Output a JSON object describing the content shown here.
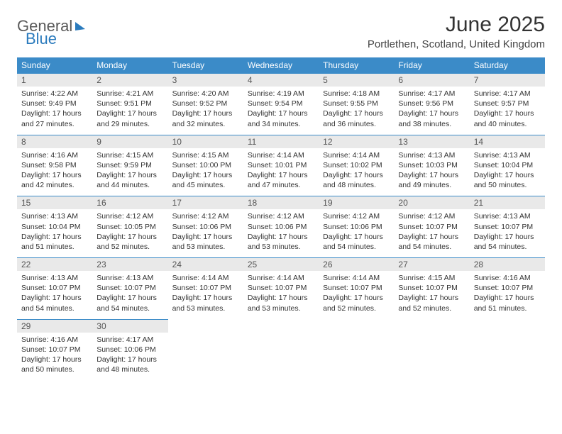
{
  "brand": {
    "part1": "General",
    "part2": "Blue"
  },
  "header": {
    "title": "June 2025",
    "location": "Portlethen, Scotland, United Kingdom"
  },
  "colors": {
    "header_bg": "#3b8bc8",
    "header_text": "#ffffff",
    "daynum_bg": "#e9e9e9",
    "border": "#3b8bc8",
    "text": "#333333"
  },
  "daysOfWeek": [
    "Sunday",
    "Monday",
    "Tuesday",
    "Wednesday",
    "Thursday",
    "Friday",
    "Saturday"
  ],
  "weeks": [
    [
      {
        "num": "1",
        "sunrise": "Sunrise: 4:22 AM",
        "sunset": "Sunset: 9:49 PM",
        "daylight": "Daylight: 17 hours and 27 minutes."
      },
      {
        "num": "2",
        "sunrise": "Sunrise: 4:21 AM",
        "sunset": "Sunset: 9:51 PM",
        "daylight": "Daylight: 17 hours and 29 minutes."
      },
      {
        "num": "3",
        "sunrise": "Sunrise: 4:20 AM",
        "sunset": "Sunset: 9:52 PM",
        "daylight": "Daylight: 17 hours and 32 minutes."
      },
      {
        "num": "4",
        "sunrise": "Sunrise: 4:19 AM",
        "sunset": "Sunset: 9:54 PM",
        "daylight": "Daylight: 17 hours and 34 minutes."
      },
      {
        "num": "5",
        "sunrise": "Sunrise: 4:18 AM",
        "sunset": "Sunset: 9:55 PM",
        "daylight": "Daylight: 17 hours and 36 minutes."
      },
      {
        "num": "6",
        "sunrise": "Sunrise: 4:17 AM",
        "sunset": "Sunset: 9:56 PM",
        "daylight": "Daylight: 17 hours and 38 minutes."
      },
      {
        "num": "7",
        "sunrise": "Sunrise: 4:17 AM",
        "sunset": "Sunset: 9:57 PM",
        "daylight": "Daylight: 17 hours and 40 minutes."
      }
    ],
    [
      {
        "num": "8",
        "sunrise": "Sunrise: 4:16 AM",
        "sunset": "Sunset: 9:58 PM",
        "daylight": "Daylight: 17 hours and 42 minutes."
      },
      {
        "num": "9",
        "sunrise": "Sunrise: 4:15 AM",
        "sunset": "Sunset: 9:59 PM",
        "daylight": "Daylight: 17 hours and 44 minutes."
      },
      {
        "num": "10",
        "sunrise": "Sunrise: 4:15 AM",
        "sunset": "Sunset: 10:00 PM",
        "daylight": "Daylight: 17 hours and 45 minutes."
      },
      {
        "num": "11",
        "sunrise": "Sunrise: 4:14 AM",
        "sunset": "Sunset: 10:01 PM",
        "daylight": "Daylight: 17 hours and 47 minutes."
      },
      {
        "num": "12",
        "sunrise": "Sunrise: 4:14 AM",
        "sunset": "Sunset: 10:02 PM",
        "daylight": "Daylight: 17 hours and 48 minutes."
      },
      {
        "num": "13",
        "sunrise": "Sunrise: 4:13 AM",
        "sunset": "Sunset: 10:03 PM",
        "daylight": "Daylight: 17 hours and 49 minutes."
      },
      {
        "num": "14",
        "sunrise": "Sunrise: 4:13 AM",
        "sunset": "Sunset: 10:04 PM",
        "daylight": "Daylight: 17 hours and 50 minutes."
      }
    ],
    [
      {
        "num": "15",
        "sunrise": "Sunrise: 4:13 AM",
        "sunset": "Sunset: 10:04 PM",
        "daylight": "Daylight: 17 hours and 51 minutes."
      },
      {
        "num": "16",
        "sunrise": "Sunrise: 4:12 AM",
        "sunset": "Sunset: 10:05 PM",
        "daylight": "Daylight: 17 hours and 52 minutes."
      },
      {
        "num": "17",
        "sunrise": "Sunrise: 4:12 AM",
        "sunset": "Sunset: 10:06 PM",
        "daylight": "Daylight: 17 hours and 53 minutes."
      },
      {
        "num": "18",
        "sunrise": "Sunrise: 4:12 AM",
        "sunset": "Sunset: 10:06 PM",
        "daylight": "Daylight: 17 hours and 53 minutes."
      },
      {
        "num": "19",
        "sunrise": "Sunrise: 4:12 AM",
        "sunset": "Sunset: 10:06 PM",
        "daylight": "Daylight: 17 hours and 54 minutes."
      },
      {
        "num": "20",
        "sunrise": "Sunrise: 4:12 AM",
        "sunset": "Sunset: 10:07 PM",
        "daylight": "Daylight: 17 hours and 54 minutes."
      },
      {
        "num": "21",
        "sunrise": "Sunrise: 4:13 AM",
        "sunset": "Sunset: 10:07 PM",
        "daylight": "Daylight: 17 hours and 54 minutes."
      }
    ],
    [
      {
        "num": "22",
        "sunrise": "Sunrise: 4:13 AM",
        "sunset": "Sunset: 10:07 PM",
        "daylight": "Daylight: 17 hours and 54 minutes."
      },
      {
        "num": "23",
        "sunrise": "Sunrise: 4:13 AM",
        "sunset": "Sunset: 10:07 PM",
        "daylight": "Daylight: 17 hours and 54 minutes."
      },
      {
        "num": "24",
        "sunrise": "Sunrise: 4:14 AM",
        "sunset": "Sunset: 10:07 PM",
        "daylight": "Daylight: 17 hours and 53 minutes."
      },
      {
        "num": "25",
        "sunrise": "Sunrise: 4:14 AM",
        "sunset": "Sunset: 10:07 PM",
        "daylight": "Daylight: 17 hours and 53 minutes."
      },
      {
        "num": "26",
        "sunrise": "Sunrise: 4:14 AM",
        "sunset": "Sunset: 10:07 PM",
        "daylight": "Daylight: 17 hours and 52 minutes."
      },
      {
        "num": "27",
        "sunrise": "Sunrise: 4:15 AM",
        "sunset": "Sunset: 10:07 PM",
        "daylight": "Daylight: 17 hours and 52 minutes."
      },
      {
        "num": "28",
        "sunrise": "Sunrise: 4:16 AM",
        "sunset": "Sunset: 10:07 PM",
        "daylight": "Daylight: 17 hours and 51 minutes."
      }
    ],
    [
      {
        "num": "29",
        "sunrise": "Sunrise: 4:16 AM",
        "sunset": "Sunset: 10:07 PM",
        "daylight": "Daylight: 17 hours and 50 minutes."
      },
      {
        "num": "30",
        "sunrise": "Sunrise: 4:17 AM",
        "sunset": "Sunset: 10:06 PM",
        "daylight": "Daylight: 17 hours and 48 minutes."
      },
      null,
      null,
      null,
      null,
      null
    ]
  ]
}
